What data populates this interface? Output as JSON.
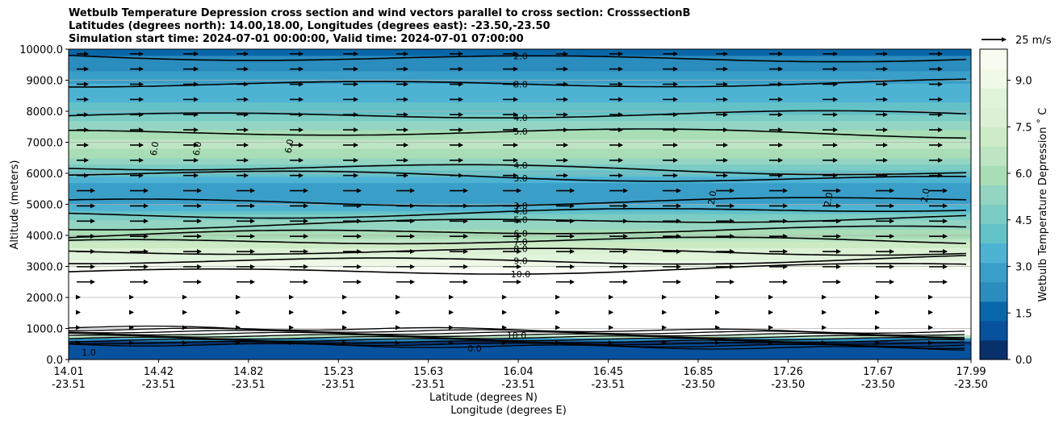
{
  "chart_data": {
    "type": "contour",
    "title_lines": [
      "Wetbulb Temperature Depression cross section and wind vectors parallel to cross section: CrosssectionB",
      "Latitudes (degrees north): 14.00,18.00, Longitudes (degrees east): -23.50,-23.50",
      "Simulation start time: 2024-07-01 00:00:00, Valid time: 2024-07-01 07:00:00"
    ],
    "ylabel": "Altitude (meters)",
    "xlabel_lat": "Latitude (degrees N)",
    "xlabel_lon": "Longitude (degrees E)",
    "ylim": [
      0,
      10000
    ],
    "y_ticks": [
      "0.0",
      "1000.0",
      "2000.0",
      "3000.0",
      "4000.0",
      "5000.0",
      "6000.0",
      "7000.0",
      "8000.0",
      "9000.0",
      "10000.0"
    ],
    "x_ticks_lat": [
      "14.01",
      "14.42",
      "14.82",
      "15.23",
      "15.63",
      "16.04",
      "16.45",
      "16.85",
      "17.26",
      "17.67",
      "17.99"
    ],
    "x_ticks_lon": [
      "-23.51",
      "-23.51",
      "-23.51",
      "-23.51",
      "-23.51",
      "-23.51",
      "-23.51",
      "-23.50",
      "-23.50",
      "-23.50",
      "-23.50"
    ],
    "grid": "horizontal",
    "colorbar": {
      "label": "Wetbulb Temperature Depression ˚ C",
      "ticks": [
        "0.0",
        "1.5",
        "3.0",
        "4.5",
        "6.0",
        "7.5",
        "9.0"
      ],
      "range": [
        0,
        10
      ],
      "colors": [
        "#08306b",
        "#08519c",
        "#0867a8",
        "#2b8cbe",
        "#3a9fc8",
        "#4eb3d3",
        "#63c1c8",
        "#7bccc4",
        "#93d5c2",
        "#a8ddb5",
        "#bde5c4",
        "#ccebc5",
        "#dcf0d5",
        "#e0f3db",
        "#f0f9e8",
        "#f7fcf0"
      ]
    },
    "wind_reference": "25 m/s",
    "profile": [
      {
        "alt": 0,
        "value": 1.0
      },
      {
        "alt": 600,
        "value": 0.5
      },
      {
        "alt": 900,
        "value": 12
      },
      {
        "alt": 2700,
        "value": 11
      },
      {
        "alt": 3000,
        "value": 9.5
      },
      {
        "alt": 3600,
        "value": 7.5
      },
      {
        "alt": 4000,
        "value": 6.0
      },
      {
        "alt": 4500,
        "value": 5.0
      },
      {
        "alt": 5000,
        "value": 3.0
      },
      {
        "alt": 5500,
        "value": 2.5
      },
      {
        "alt": 6000,
        "value": 4.0
      },
      {
        "alt": 6500,
        "value": 5.8
      },
      {
        "alt": 7000,
        "value": 6.5
      },
      {
        "alt": 7500,
        "value": 5.5
      },
      {
        "alt": 8000,
        "value": 4.0
      },
      {
        "alt": 9000,
        "value": 3.0
      },
      {
        "alt": 10000,
        "value": 1.5
      }
    ],
    "contours": [
      {
        "level": "2.0",
        "alt": 9800
      },
      {
        "level": "3.0",
        "alt": 8950
      },
      {
        "level": "4.0",
        "alt": 7900
      },
      {
        "level": "5.0",
        "alt": 7300
      },
      {
        "level": "4.0",
        "alt": 6150
      },
      {
        "level": "3.0",
        "alt": 5950
      },
      {
        "level": "3.0",
        "alt": 5050
      },
      {
        "level": "4.0",
        "alt": 4700
      },
      {
        "level": "5.0",
        "alt": 4350
      },
      {
        "level": "6.0",
        "alt": 4000
      },
      {
        "level": "7.0",
        "alt": 3700
      },
      {
        "level": "8.0",
        "alt": 3400
      },
      {
        "level": "9.0",
        "alt": 3150
      },
      {
        "level": "10.0",
        "alt": 2850
      }
    ],
    "contour_extra_labels": [
      "6.0",
      "6.0",
      "6.0",
      "2.0",
      "2.0",
      "2.0",
      "10.0",
      "0.0",
      "1.0"
    ]
  }
}
